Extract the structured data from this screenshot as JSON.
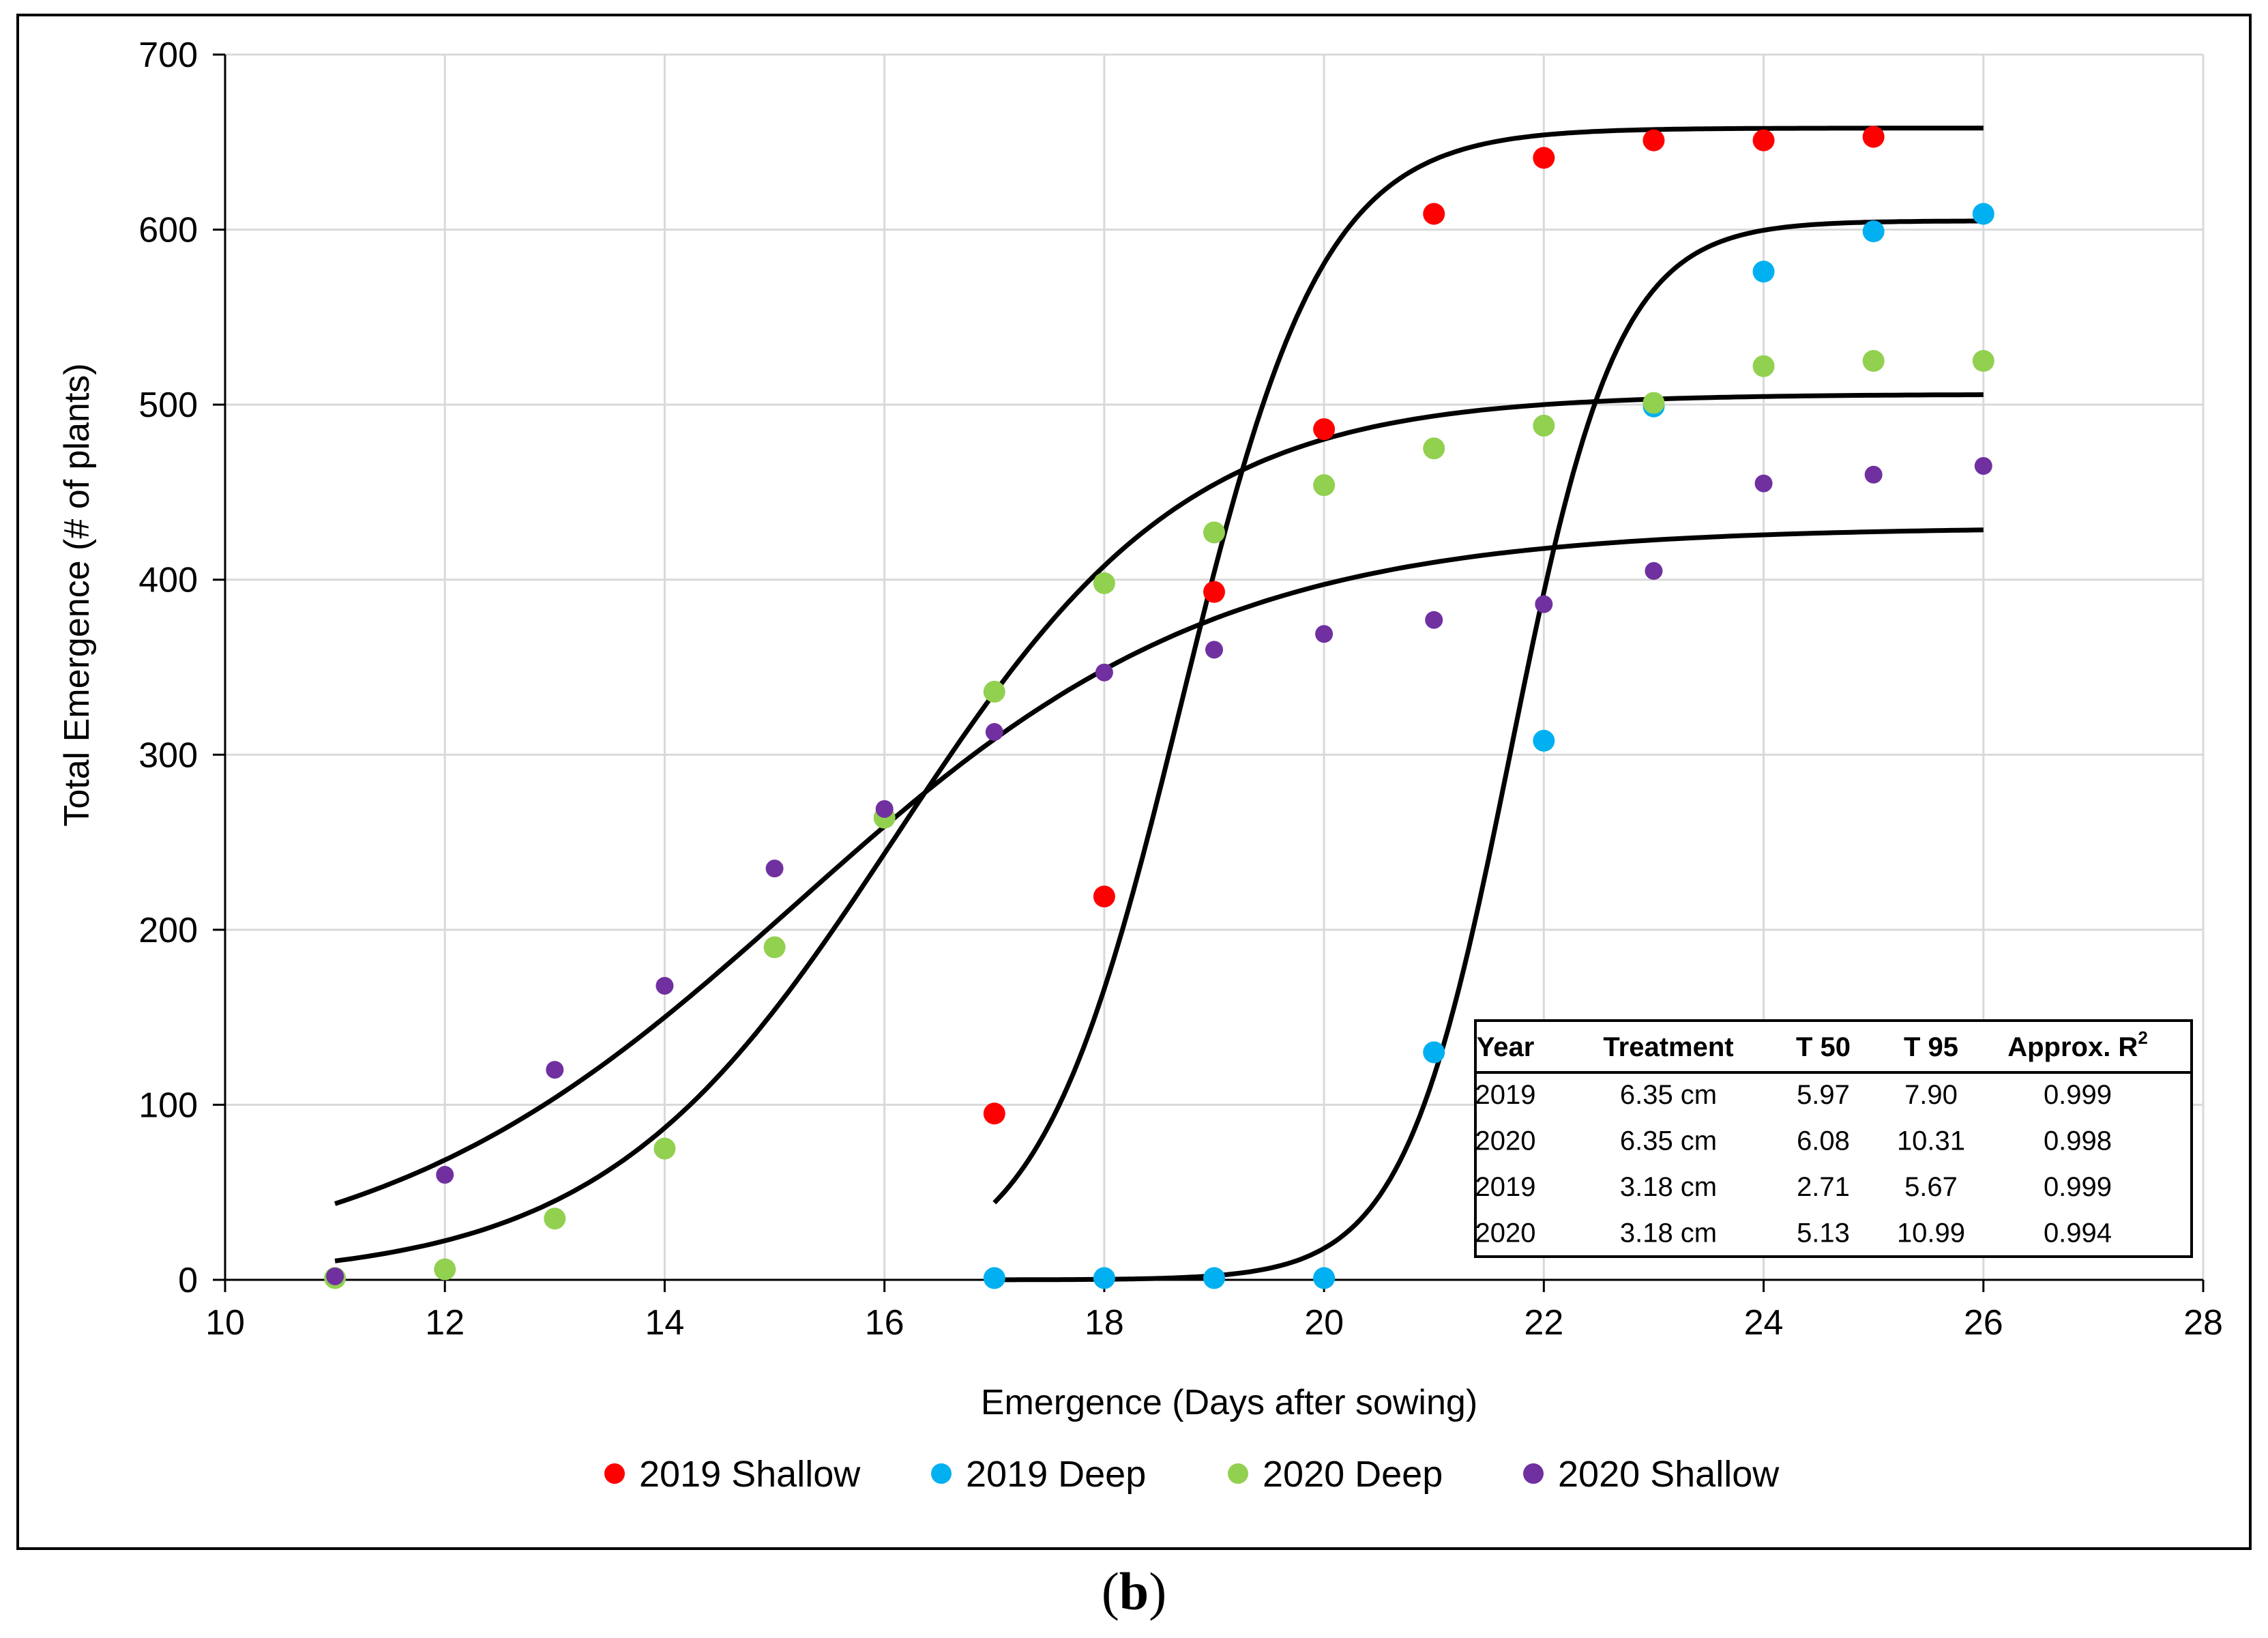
{
  "panel_label": "b",
  "chart_data": {
    "type": "scatter",
    "title": "",
    "xlabel": "Emergence (Days after sowing)",
    "ylabel": "Total Emergence (# of plants)",
    "xlim": [
      10,
      28
    ],
    "ylim": [
      0,
      700
    ],
    "xticks": [
      10,
      12,
      14,
      16,
      18,
      20,
      22,
      24,
      26,
      28
    ],
    "yticks": [
      0,
      100,
      200,
      300,
      400,
      500,
      600,
      700
    ],
    "grid": true,
    "legend_position": "bottom",
    "series": [
      {
        "name": "2019 Shallow",
        "color": "#ff0000",
        "x": [
          17,
          18,
          19,
          20,
          21,
          22,
          23,
          24,
          25
        ],
        "y": [
          95,
          219,
          393,
          486,
          609,
          641,
          651,
          651,
          653
        ]
      },
      {
        "name": "2019 Deep",
        "color": "#00b0f0",
        "x": [
          17,
          18,
          19,
          20,
          21,
          22,
          23,
          24,
          25,
          26
        ],
        "y": [
          1,
          1,
          1,
          1,
          130,
          308,
          499,
          576,
          599,
          609
        ]
      },
      {
        "name": "2020 Deep",
        "color": "#92d050",
        "x": [
          11,
          12,
          13,
          14,
          15,
          16,
          17,
          18,
          19,
          20,
          21,
          22,
          23,
          24,
          25,
          26
        ],
        "y": [
          1,
          6,
          35,
          75,
          190,
          264,
          336,
          398,
          427,
          454,
          475,
          488,
          501,
          522,
          525,
          525
        ]
      },
      {
        "name": "2020 Shallow",
        "color": "#7030a0",
        "x": [
          11,
          12,
          13,
          14,
          15,
          16,
          17,
          18,
          19,
          20,
          21,
          22,
          23,
          24,
          25,
          26
        ],
        "y": [
          2,
          60,
          120,
          168,
          235,
          269,
          313,
          347,
          360,
          369,
          377,
          386,
          405,
          455,
          460,
          465
        ]
      }
    ],
    "fits": [
      {
        "series": "2019 Shallow",
        "L": 658,
        "k": 1.55,
        "x0": 18.7,
        "x_range": [
          17,
          26
        ]
      },
      {
        "series": "2019 Deep",
        "L": 605,
        "k": 2.05,
        "x0": 21.7,
        "x_range": [
          17,
          26
        ]
      },
      {
        "series": "2020 Deep",
        "L": 506,
        "k": 0.75,
        "x0": 16.1,
        "x_range": [
          11,
          26
        ]
      },
      {
        "series": "2020 Shallow",
        "L": 430,
        "k": 0.52,
        "x0": 15.2,
        "x_range": [
          11,
          26
        ]
      }
    ],
    "table": {
      "headers": [
        "Year",
        "Treatment",
        "T 50",
        "T 95",
        "Approx. R"
      ],
      "header_superscript": "2",
      "rows": [
        [
          "2019",
          "6.35 cm",
          "5.97",
          "7.90",
          "0.999"
        ],
        [
          "2020",
          "6.35 cm",
          "6.08",
          "10.31",
          "0.998"
        ],
        [
          "2019",
          "3.18 cm",
          "2.71",
          "5.67",
          "0.999"
        ],
        [
          "2020",
          "3.18 cm",
          "5.13",
          "10.99",
          "0.994"
        ]
      ]
    }
  }
}
